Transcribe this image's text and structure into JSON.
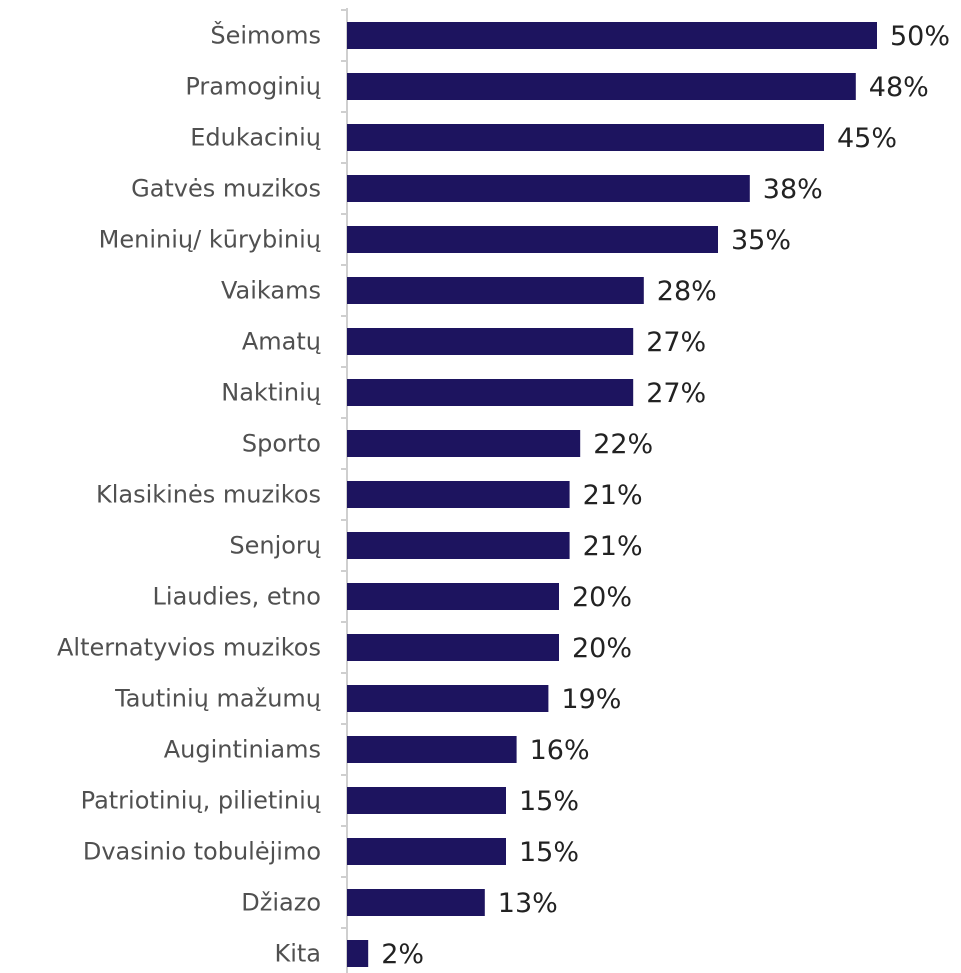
{
  "chart_data": {
    "type": "bar",
    "orientation": "horizontal",
    "title": "",
    "xlabel": "",
    "ylabel": "",
    "categories": [
      "Šeimoms",
      "Pramoginių",
      "Edukacinių",
      "Gatvės muzikos",
      "Meninių/ kūrybinių",
      "Vaikams",
      "Amatų",
      "Naktinių",
      "Sporto",
      "Klasikinės muzikos",
      "Senjorų",
      "Liaudies, etno",
      "Alternatyvios muzikos",
      "Tautinių mažumų",
      "Augintiniams",
      "Patriotinių, pilietinių",
      "Dvasinio tobulėjimo",
      "Džiazo",
      "Kita"
    ],
    "values": [
      50,
      48,
      45,
      38,
      35,
      28,
      27,
      27,
      22,
      21,
      21,
      20,
      20,
      19,
      16,
      15,
      15,
      13,
      2
    ],
    "value_labels": [
      "50%",
      "48%",
      "45%",
      "38%",
      "35%",
      "28%",
      "27%",
      "27%",
      "22%",
      "21%",
      "21%",
      "20%",
      "20%",
      "19%",
      "16%",
      "15%",
      "15%",
      "13%",
      "2%"
    ],
    "xlim": [
      0,
      50
    ],
    "grid": false,
    "legend": "none",
    "bar_color": "#1d145f",
    "axis_color": "#cfcfcf"
  }
}
